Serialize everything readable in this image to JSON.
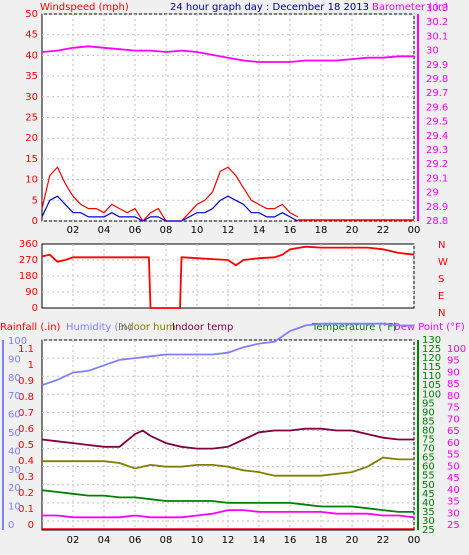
{
  "chart_data": [
    {
      "type": "line",
      "panel": "wind-barometer",
      "title": "24 hour graph day : December 18 2013",
      "ylabel_left": "Windspeed (mph)",
      "ylabel_right": "Barometer (.in)",
      "ylim_left": [
        0,
        50
      ],
      "ylim_right": [
        29.75,
        30.3
      ],
      "yticks_left": [
        "50",
        "45",
        "40",
        "35",
        "30",
        "25",
        "20",
        "15",
        "10",
        "5",
        "0"
      ],
      "yticks_right": [
        "30.3",
        "30.2",
        "30.1",
        "30",
        "29.9",
        "29.8",
        "29.7",
        "29.6",
        "29.5",
        "29.4",
        "29.3",
        "29.2",
        "29.1",
        "29",
        "28.9",
        "28.8"
      ],
      "x_ticks": [
        "02",
        "04",
        "06",
        "08",
        "10",
        "12",
        "14",
        "16",
        "18",
        "20",
        "22",
        "00"
      ],
      "colors": {
        "wind_gust": "#ff0000",
        "wind_avg": "#0000cc",
        "barometer": "#ff00ff",
        "title": "#000099"
      },
      "series": [
        {
          "name": "Barometer",
          "axis": "right",
          "x": [
            0,
            1,
            2,
            3,
            4,
            5,
            6,
            7,
            8,
            9,
            10,
            11,
            12,
            13,
            14,
            15,
            16,
            17,
            18,
            19,
            20,
            21,
            22,
            23,
            24
          ],
          "values": [
            29.99,
            30.0,
            30.02,
            30.03,
            30.02,
            30.01,
            30.0,
            30.0,
            29.99,
            30.0,
            29.99,
            29.97,
            29.95,
            29.93,
            29.92,
            29.92,
            29.92,
            29.93,
            29.93,
            29.93,
            29.94,
            29.95,
            29.95,
            29.96,
            29.96
          ]
        },
        {
          "name": "Wind gust",
          "axis": "left",
          "x": [
            0,
            0.5,
            1,
            1.5,
            2,
            2.5,
            3,
            3.5,
            4,
            4.5,
            5,
            5.5,
            6,
            6.5,
            7,
            7.5,
            8,
            8.5,
            9,
            9.5,
            10,
            10.5,
            11,
            11.5,
            12,
            12.5,
            13,
            13.5,
            14,
            14.5,
            15,
            15.5,
            16,
            16.5
          ],
          "values": [
            3,
            11,
            13,
            9,
            6,
            4,
            3,
            3,
            2,
            4,
            3,
            2,
            3,
            0,
            2,
            3,
            0,
            0,
            0,
            2,
            4,
            5,
            7,
            12,
            13,
            11,
            8,
            5,
            4,
            3,
            3,
            4,
            2,
            1
          ]
        },
        {
          "name": "Wind average",
          "axis": "left",
          "x": [
            0,
            0.5,
            1,
            1.5,
            2,
            2.5,
            3,
            3.5,
            4,
            4.5,
            5,
            5.5,
            6,
            6.5,
            7,
            7.5,
            8,
            8.5,
            9,
            9.5,
            10,
            10.5,
            11,
            11.5,
            12,
            12.5,
            13,
            13.5,
            14,
            14.5,
            15,
            15.5,
            16,
            16.5
          ],
          "values": [
            1,
            5,
            6,
            4,
            2,
            2,
            1,
            1,
            1,
            2,
            1,
            1,
            1,
            0,
            1,
            1,
            0,
            0,
            0,
            1,
            2,
            2,
            3,
            5,
            6,
            5,
            4,
            2,
            2,
            1,
            1,
            2,
            1,
            0
          ]
        }
      ]
    },
    {
      "type": "line",
      "panel": "wind-direction",
      "ylim": [
        0,
        360
      ],
      "yticks": [
        "360",
        "270",
        "180",
        "90",
        "0"
      ],
      "compass": [
        "N",
        "W",
        "S",
        "E",
        "N"
      ],
      "x_ticks": [
        "02",
        "04",
        "06",
        "08",
        "10",
        "12",
        "14",
        "16",
        "18",
        "20",
        "22",
        "00"
      ],
      "colors": {
        "direction": "#ff0000"
      },
      "series": [
        {
          "name": "Wind direction",
          "x": [
            0,
            0.5,
            1,
            1.5,
            2,
            3,
            4,
            5,
            6,
            6.9,
            7,
            7.1,
            8,
            8.9,
            9,
            9.1,
            10,
            11,
            12,
            12.5,
            13,
            14,
            15,
            15.5,
            16,
            17,
            18,
            19,
            20,
            21,
            22,
            23,
            24
          ],
          "values": [
            290,
            300,
            260,
            270,
            285,
            285,
            285,
            285,
            285,
            285,
            0,
            0,
            0,
            0,
            285,
            285,
            280,
            275,
            270,
            240,
            270,
            280,
            285,
            300,
            330,
            345,
            340,
            340,
            340,
            340,
            330,
            310,
            300
          ]
        }
      ]
    },
    {
      "type": "line",
      "panel": "temp-humidity-rain",
      "legend": [
        "Rainfall (.in)",
        "Humidity (%)",
        "Indoor hum",
        "Indoor temp",
        "Temperature (°F)",
        "Dew Point (°F)"
      ],
      "yticks_rain": [
        "1.1",
        "1",
        "0.9",
        "0.8",
        "0.7",
        "0.6",
        "0.5",
        "0.4",
        "0.3",
        "0.2",
        "0.1",
        "0"
      ],
      "yticks_hum": [
        "100",
        "90",
        "80",
        "70",
        "60",
        "50",
        "40",
        "30",
        "20",
        "10",
        "0"
      ],
      "yticks_temp": [
        "130",
        "125",
        "120",
        "115",
        "110",
        "105",
        "100",
        "95",
        "90",
        "85",
        "80",
        "75",
        "70",
        "65",
        "60",
        "55",
        "50",
        "45",
        "40",
        "35",
        "30",
        "25"
      ],
      "yticks_dew": [
        "100",
        "95",
        "90",
        "85",
        "80",
        "75",
        "70",
        "65",
        "60",
        "55",
        "50",
        "45",
        "40",
        "35",
        "30",
        "25"
      ],
      "x_ticks": [
        "02",
        "04",
        "06",
        "08",
        "10",
        "12",
        "14",
        "16",
        "18",
        "20",
        "22",
        "00"
      ],
      "ylim_temp": [
        25,
        130
      ],
      "colors": {
        "rain": "#ff0000",
        "humidity": "#7f7fff",
        "indoor_hum": "#808000",
        "indoor_temp": "#800040",
        "temperature": "#008000",
        "dew": "#ff00ff"
      },
      "series": [
        {
          "name": "Humidity",
          "x": [
            0,
            1,
            2,
            3,
            4,
            5,
            6,
            7,
            8,
            9,
            10,
            11,
            12,
            13,
            14,
            15,
            16,
            17,
            18,
            19,
            20,
            21,
            22,
            23,
            24
          ],
          "values": [
            105,
            108,
            112,
            113,
            116,
            119,
            120,
            121,
            122,
            122,
            122,
            122,
            123,
            126,
            128,
            129,
            135,
            138,
            139,
            139,
            139,
            139,
            139,
            138,
            138
          ]
        },
        {
          "name": "Indoor temp",
          "x": [
            0,
            1,
            2,
            3,
            4,
            5,
            6,
            6.5,
            7,
            8,
            9,
            10,
            11,
            12,
            13,
            13.5,
            14,
            15,
            16,
            17,
            18,
            19,
            20,
            21,
            22,
            23,
            24
          ],
          "values": [
            75,
            74,
            73,
            72,
            71,
            71,
            78,
            80,
            77,
            73,
            71,
            70,
            70,
            71,
            75,
            77,
            79,
            80,
            80,
            81,
            81,
            80,
            80,
            78,
            76,
            75,
            75
          ]
        },
        {
          "name": "Indoor hum",
          "x": [
            0,
            1,
            2,
            3,
            4,
            5,
            6,
            7,
            8,
            9,
            10,
            11,
            12,
            13,
            14,
            15,
            16,
            17,
            18,
            19,
            20,
            21,
            22,
            23,
            24
          ],
          "values": [
            63,
            63,
            63,
            63,
            63,
            62,
            59,
            61,
            60,
            60,
            61,
            61,
            60,
            58,
            57,
            55,
            55,
            55,
            55,
            56,
            57,
            60,
            65,
            64,
            64
          ]
        },
        {
          "name": "Temperature",
          "x": [
            0,
            1,
            2,
            3,
            4,
            5,
            6,
            7,
            8,
            9,
            10,
            11,
            12,
            13,
            14,
            15,
            16,
            17,
            18,
            19,
            20,
            21,
            22,
            23,
            24
          ],
          "values": [
            47,
            46,
            45,
            44,
            44,
            43,
            43,
            42,
            41,
            41,
            41,
            41,
            40,
            40,
            40,
            40,
            40,
            39,
            38,
            38,
            38,
            37,
            36,
            35,
            35
          ]
        },
        {
          "name": "Dew Point",
          "x": [
            0,
            1,
            2,
            3,
            4,
            5,
            6,
            7,
            8,
            9,
            10,
            11,
            12,
            13,
            14,
            15,
            16,
            17,
            18,
            19,
            20,
            21,
            22,
            23,
            24
          ],
          "values": [
            33,
            33,
            32,
            32,
            32,
            32,
            33,
            32,
            32,
            32,
            33,
            34,
            36,
            36,
            35,
            35,
            35,
            35,
            35,
            34,
            34,
            34,
            33,
            33,
            32
          ]
        }
      ]
    }
  ]
}
